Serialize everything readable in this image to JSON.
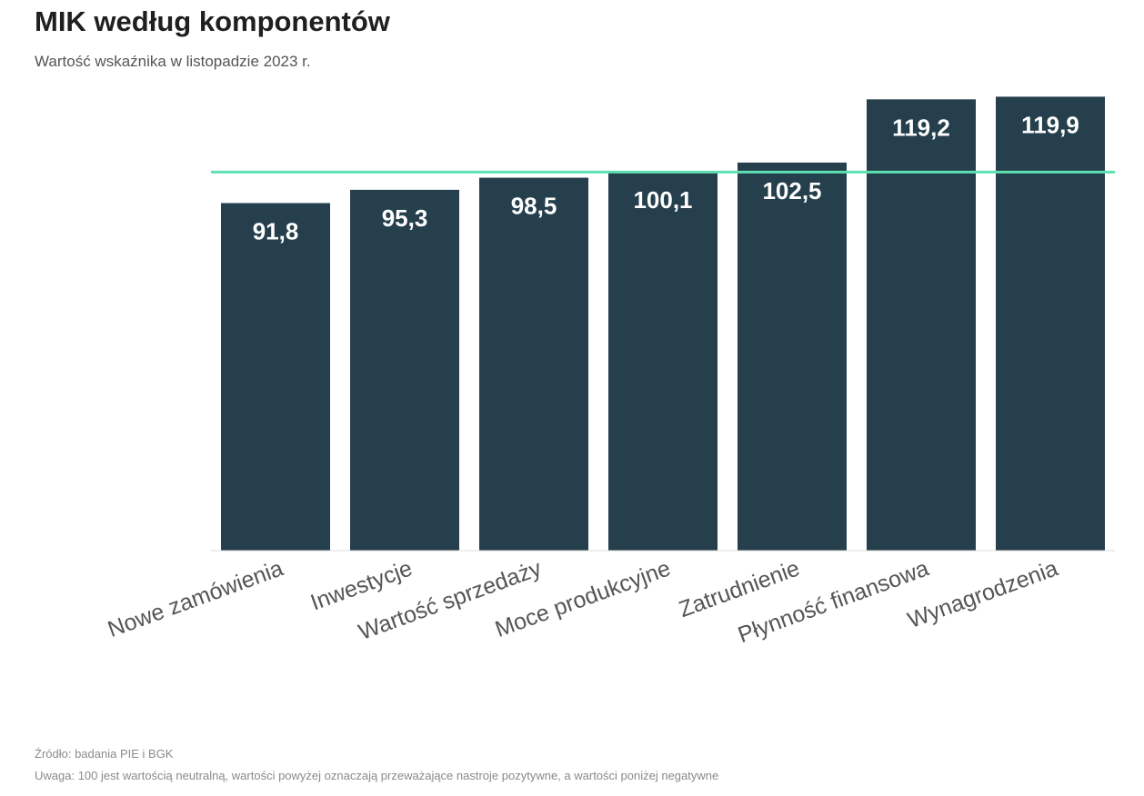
{
  "header": {
    "title": "MIK według komponentów",
    "subtitle": "Wartość wskaźnika w listopadzie 2023 r."
  },
  "chart_data": {
    "type": "bar",
    "categories": [
      "Nowe zamówienia",
      "Inwestycje",
      "Wartość sprzedaży",
      "Moce produkcyjne",
      "Zatrudnienie",
      "Płynność finansowa",
      "Wynagrodzenia"
    ],
    "values": [
      91.8,
      95.3,
      98.5,
      100.1,
      102.5,
      119.2,
      119.9
    ],
    "value_labels": [
      "91,8",
      "95,3",
      "98,5",
      "100,1",
      "102,5",
      "119,2",
      "119,9"
    ],
    "title": "MIK według komponentów",
    "subtitle": "Wartość wskaźnika w listopadzie 2023 r.",
    "xlabel": "",
    "ylabel": "",
    "ylim": [
      0,
      120
    ],
    "reference_line": 100,
    "grid": false,
    "legend": "none",
    "bar_color": "#253f4c",
    "reference_color": "#5ee0b0",
    "label_color": "#ffffff",
    "axis_label_color": "#555555"
  },
  "footer": {
    "source": "Źródło: badania PIE i BGK",
    "note": "Uwaga: 100 jest wartością neutralną, wartości powyżej oznaczają przeważające nastroje pozytywne, a wartości poniżej negatywne"
  }
}
